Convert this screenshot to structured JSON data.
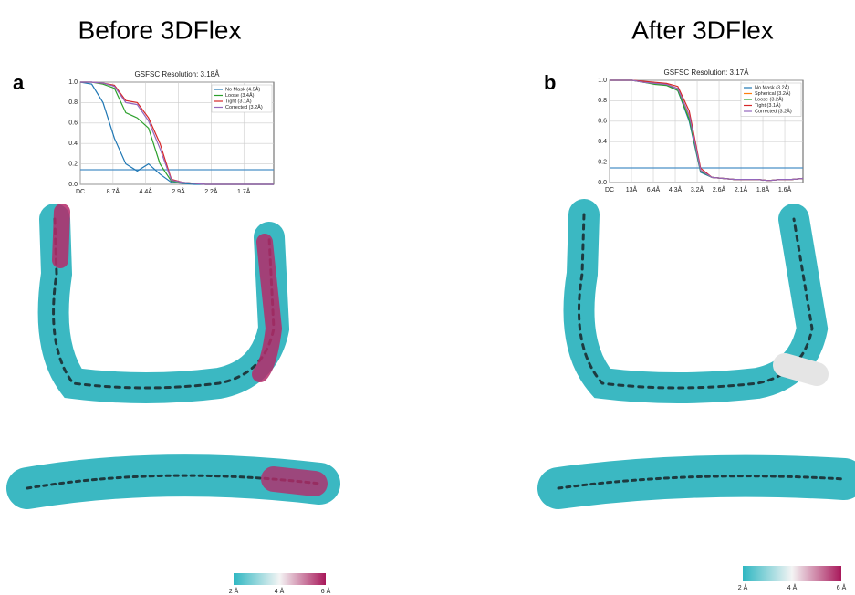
{
  "panels": [
    {
      "letter": "a",
      "heading": "Before 3DFlex",
      "colorbar": [
        "2 Å",
        "4 Å",
        "6 Å"
      ]
    },
    {
      "letter": "b",
      "heading": "After 3DFlex",
      "colorbar": [
        "2 Å",
        "4 Å",
        "6 Å"
      ]
    }
  ],
  "chart_data": [
    {
      "type": "line",
      "title": "GSFSC Resolution: 3.18Å",
      "x": [
        0,
        0.04,
        0.08,
        0.12,
        0.16,
        0.2,
        0.24,
        0.28,
        0.32,
        0.36,
        0.4,
        0.44,
        0.48,
        0.52,
        0.56,
        0.6,
        0.64,
        0.68
      ],
      "xlim": [
        0,
        0.68
      ],
      "xticks": [
        {
          "value": 0,
          "label": "DC"
        },
        {
          "value": 0.115,
          "label": "8.7Å"
        },
        {
          "value": 0.23,
          "label": "4.4Å"
        },
        {
          "value": 0.345,
          "label": "2.9Å"
        },
        {
          "value": 0.46,
          "label": "2.2Å"
        },
        {
          "value": 0.575,
          "label": "1.7Å"
        }
      ],
      "ylim": [
        0,
        1
      ],
      "yticks": [
        {
          "value": 0,
          "label": "0.0"
        },
        {
          "value": 0.2,
          "label": "0.2"
        },
        {
          "value": 0.4,
          "label": "0.4"
        },
        {
          "value": 0.6,
          "label": "0.6"
        },
        {
          "value": 0.8,
          "label": "0.8"
        },
        {
          "value": 1,
          "label": "1.0"
        }
      ],
      "threshold": 0.143,
      "threshold_color": "#4a90c8",
      "grid": true,
      "series": [
        {
          "name": "No Mask (4.5Å)",
          "color": "#1f77b4",
          "values": [
            1,
            0.98,
            0.8,
            0.45,
            0.2,
            0.13,
            0.2,
            0.1,
            0.02,
            0.01,
            0,
            0,
            0,
            0,
            0,
            0,
            0,
            0
          ]
        },
        {
          "name": "Loose (3.4Å)",
          "color": "#2ca02c",
          "values": [
            1,
            1,
            0.98,
            0.94,
            0.7,
            0.65,
            0.55,
            0.2,
            0.03,
            0.02,
            0.01,
            0,
            0,
            0,
            0,
            0,
            0,
            0
          ]
        },
        {
          "name": "Tight (3.1Å)",
          "color": "#d62728",
          "values": [
            1,
            1,
            0.99,
            0.97,
            0.82,
            0.8,
            0.65,
            0.4,
            0.05,
            0.02,
            0.01,
            0,
            0,
            0,
            0,
            0,
            0,
            0
          ]
        },
        {
          "name": "Corrected (3.2Å)",
          "color": "#9467bd",
          "values": [
            1,
            1,
            0.99,
            0.96,
            0.8,
            0.78,
            0.62,
            0.35,
            0.04,
            0.02,
            0.01,
            0,
            0,
            0,
            0,
            0,
            0,
            0
          ]
        }
      ]
    },
    {
      "type": "line",
      "title": "GSFSC Resolution: 3.17Å",
      "x": [
        0,
        0.04,
        0.08,
        0.12,
        0.16,
        0.2,
        0.24,
        0.28,
        0.32,
        0.36,
        0.4,
        0.44,
        0.48,
        0.52,
        0.56,
        0.6,
        0.64,
        0.68
      ],
      "xlim": [
        0,
        0.68
      ],
      "xticks": [
        {
          "value": 0,
          "label": "DC"
        },
        {
          "value": 0.077,
          "label": "13Å"
        },
        {
          "value": 0.154,
          "label": "6.4Å"
        },
        {
          "value": 0.231,
          "label": "4.3Å"
        },
        {
          "value": 0.308,
          "label": "3.2Å"
        },
        {
          "value": 0.385,
          "label": "2.6Å"
        },
        {
          "value": 0.462,
          "label": "2.1Å"
        },
        {
          "value": 0.539,
          "label": "1.8Å"
        },
        {
          "value": 0.616,
          "label": "1.6Å"
        }
      ],
      "ylim": [
        0,
        1
      ],
      "yticks": [
        {
          "value": 0,
          "label": "0.0"
        },
        {
          "value": 0.2,
          "label": "0.2"
        },
        {
          "value": 0.4,
          "label": "0.4"
        },
        {
          "value": 0.6,
          "label": "0.6"
        },
        {
          "value": 0.8,
          "label": "0.8"
        },
        {
          "value": 1,
          "label": "1.0"
        }
      ],
      "threshold": 0.143,
      "threshold_color": "#4a90c8",
      "grid": true,
      "series": [
        {
          "name": "No Mask (3.2Å)",
          "color": "#1f77b4",
          "values": [
            1,
            1,
            1,
            0.98,
            0.97,
            0.96,
            0.9,
            0.6,
            0.1,
            0.05,
            0.04,
            0.03,
            0.03,
            0.03,
            0.02,
            0.03,
            0.03,
            0.04
          ]
        },
        {
          "name": "Spherical (3.2Å)",
          "color": "#ff7f0e",
          "values": [
            1,
            1,
            1,
            0.98,
            0.97,
            0.96,
            0.92,
            0.65,
            0.12,
            0.05,
            0.04,
            0.03,
            0.03,
            0.03,
            0.02,
            0.03,
            0.03,
            0.04
          ]
        },
        {
          "name": "Loose (3.2Å)",
          "color": "#2ca02c",
          "values": [
            1,
            1,
            1,
            0.98,
            0.96,
            0.95,
            0.9,
            0.62,
            0.11,
            0.05,
            0.04,
            0.03,
            0.03,
            0.03,
            0.02,
            0.03,
            0.03,
            0.04
          ]
        },
        {
          "name": "Tight (3.1Å)",
          "color": "#d62728",
          "values": [
            1,
            1,
            1,
            0.99,
            0.98,
            0.97,
            0.94,
            0.7,
            0.14,
            0.05,
            0.04,
            0.03,
            0.03,
            0.03,
            0.02,
            0.03,
            0.03,
            0.04
          ]
        },
        {
          "name": "Corrected (3.2Å)",
          "color": "#9467bd",
          "values": [
            1,
            1,
            1,
            0.98,
            0.97,
            0.96,
            0.92,
            0.66,
            0.12,
            0.05,
            0.04,
            0.03,
            0.03,
            0.03,
            0.02,
            0.03,
            0.03,
            0.04
          ]
        }
      ]
    }
  ]
}
